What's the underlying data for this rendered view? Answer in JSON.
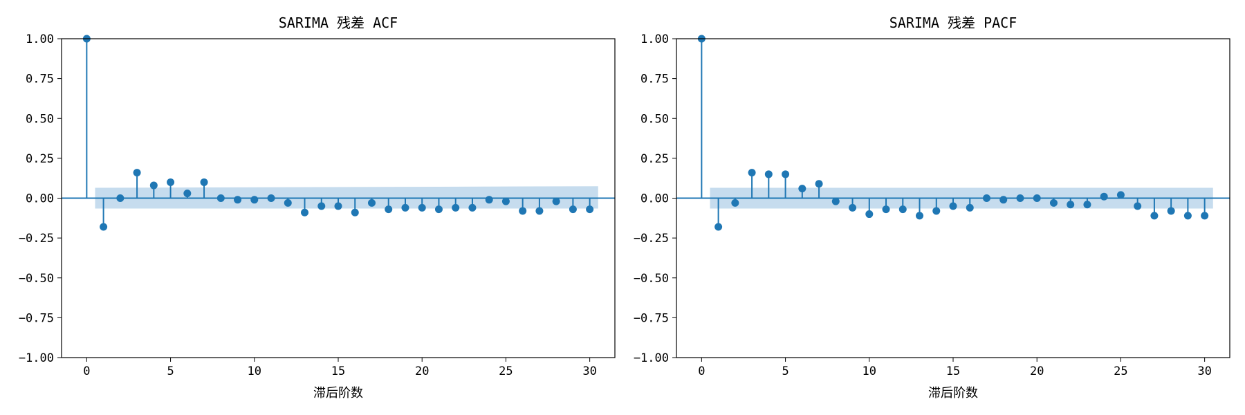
{
  "colors": {
    "stem": "#1f77b4",
    "confidence_band": "#c6dcee",
    "axis": "#000000",
    "background": "#ffffff"
  },
  "chart_data": [
    {
      "type": "stem",
      "title": "SARIMA 残差 ACF",
      "xlabel": "滞后阶数",
      "ylabel": "",
      "xlim": [
        -1.5,
        31.5
      ],
      "ylim": [
        -1.0,
        1.0
      ],
      "xticks": [
        0,
        5,
        10,
        15,
        20,
        25,
        30
      ],
      "xtick_labels": [
        "0",
        "5",
        "10",
        "15",
        "20",
        "25",
        "30"
      ],
      "yticks": [
        1.0,
        0.75,
        0.5,
        0.25,
        0.0,
        -0.25,
        -0.5,
        -0.75,
        -1.0
      ],
      "ytick_labels": [
        "1.00",
        "0.75",
        "0.50",
        "0.25",
        "0.00",
        "−0.25",
        "−0.50",
        "−0.75",
        "−1.00"
      ],
      "lags": [
        0,
        1,
        2,
        3,
        4,
        5,
        6,
        7,
        8,
        9,
        10,
        11,
        12,
        13,
        14,
        15,
        16,
        17,
        18,
        19,
        20,
        21,
        22,
        23,
        24,
        25,
        26,
        27,
        28,
        29,
        30
      ],
      "values": [
        1.0,
        -0.18,
        0.0,
        0.16,
        0.08,
        0.1,
        0.03,
        0.1,
        0.0,
        -0.01,
        -0.01,
        0.0,
        -0.03,
        -0.09,
        -0.05,
        -0.05,
        -0.09,
        -0.03,
        -0.07,
        -0.06,
        -0.06,
        -0.07,
        -0.06,
        -0.06,
        -0.01,
        -0.02,
        -0.08,
        -0.08,
        -0.02,
        -0.07,
        -0.07
      ],
      "confidence_interval": {
        "x": [
          0.5,
          30.5
        ],
        "upper": [
          0.065,
          0.075
        ],
        "lower": [
          -0.065,
          -0.065
        ]
      }
    },
    {
      "type": "stem",
      "title": "SARIMA 残差 PACF",
      "xlabel": "滞后阶数",
      "ylabel": "",
      "xlim": [
        -1.5,
        31.5
      ],
      "ylim": [
        -1.0,
        1.0
      ],
      "xticks": [
        0,
        5,
        10,
        15,
        20,
        25,
        30
      ],
      "xtick_labels": [
        "0",
        "5",
        "10",
        "15",
        "20",
        "25",
        "30"
      ],
      "yticks": [
        1.0,
        0.75,
        0.5,
        0.25,
        0.0,
        -0.25,
        -0.5,
        -0.75,
        -1.0
      ],
      "ytick_labels": [
        "1.00",
        "0.75",
        "0.50",
        "0.25",
        "0.00",
        "−0.25",
        "−0.50",
        "−0.75",
        "−1.00"
      ],
      "lags": [
        0,
        1,
        2,
        3,
        4,
        5,
        6,
        7,
        8,
        9,
        10,
        11,
        12,
        13,
        14,
        15,
        16,
        17,
        18,
        19,
        20,
        21,
        22,
        23,
        24,
        25,
        26,
        27,
        28,
        29,
        30
      ],
      "values": [
        1.0,
        -0.18,
        -0.03,
        0.16,
        0.15,
        0.15,
        0.06,
        0.09,
        -0.02,
        -0.06,
        -0.1,
        -0.07,
        -0.07,
        -0.11,
        -0.08,
        -0.05,
        -0.06,
        0.0,
        -0.01,
        0.0,
        0.0,
        -0.03,
        -0.04,
        -0.04,
        0.01,
        0.02,
        -0.05,
        -0.11,
        -0.08,
        -0.11,
        -0.11
      ],
      "confidence_interval": {
        "x": [
          0.5,
          30.5
        ],
        "upper": [
          0.065,
          0.065
        ],
        "lower": [
          -0.065,
          -0.065
        ]
      }
    }
  ]
}
